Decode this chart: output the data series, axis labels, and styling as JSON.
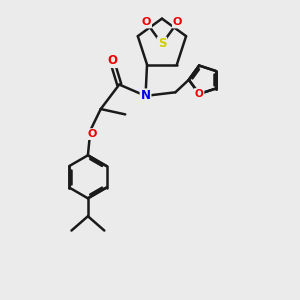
{
  "background_color": "#ebebeb",
  "bond_color": "#1a1a1a",
  "atom_colors": {
    "N": "#0000ee",
    "O": "#ee0000",
    "S": "#cccc00",
    "C": "#1a1a1a"
  },
  "figsize": [
    3.0,
    3.0
  ],
  "dpi": 100
}
